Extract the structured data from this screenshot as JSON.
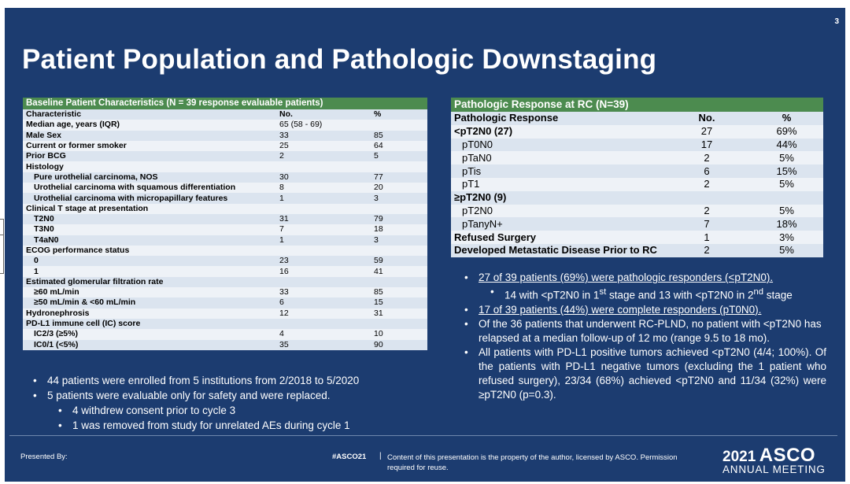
{
  "slide": {
    "number": "3",
    "title": "Patient Population and Pathologic Downstaging"
  },
  "baseline_table": {
    "header": "Baseline Patient Characteristics (N = 39 response evaluable patients)",
    "rows": [
      {
        "label": "Characteristic",
        "no": "No.",
        "pct": "%",
        "bold": true,
        "indent": false
      },
      {
        "label": "Median age, years (IQR)",
        "no": "65 (58 - 69)",
        "pct": "",
        "bold": true,
        "indent": false
      },
      {
        "label": "Male Sex",
        "no": "33",
        "pct": "85",
        "bold": true,
        "indent": false
      },
      {
        "label": "Current or former smoker",
        "no": "25",
        "pct": "64",
        "bold": true,
        "indent": false
      },
      {
        "label": "Prior BCG",
        "no": "2",
        "pct": "5",
        "bold": true,
        "indent": false
      },
      {
        "label": "Histology",
        "no": "",
        "pct": "",
        "bold": true,
        "indent": false
      },
      {
        "label": "Pure urothelial carcinoma, NOS",
        "no": "30",
        "pct": "77",
        "bold": true,
        "indent": true
      },
      {
        "label": "Urothelial carcinoma with squamous differentiation",
        "no": "8",
        "pct": "20",
        "bold": true,
        "indent": true
      },
      {
        "label": "Urothelial carcinoma with micropapillary features",
        "no": "1",
        "pct": "3",
        "bold": true,
        "indent": true
      },
      {
        "label": "Clinical T stage at presentation",
        "no": "",
        "pct": "",
        "bold": true,
        "indent": false
      },
      {
        "label": "T2N0",
        "no": "31",
        "pct": "79",
        "bold": true,
        "indent": true
      },
      {
        "label": "T3N0",
        "no": "7",
        "pct": "18",
        "bold": true,
        "indent": true
      },
      {
        "label": "T4aN0",
        "no": "1",
        "pct": "3",
        "bold": true,
        "indent": true
      },
      {
        "label": "ECOG performance status",
        "no": "",
        "pct": "",
        "bold": true,
        "indent": false
      },
      {
        "label": "0",
        "no": "23",
        "pct": "59",
        "bold": true,
        "indent": true
      },
      {
        "label": "1",
        "no": "16",
        "pct": "41",
        "bold": true,
        "indent": true
      },
      {
        "label": "Estimated glomerular filtration rate",
        "no": "",
        "pct": "",
        "bold": true,
        "indent": false
      },
      {
        "label": "≥60 mL/min",
        "no": "33",
        "pct": "85",
        "bold": true,
        "indent": true
      },
      {
        "label": "≥50 mL/min & <60 mL/min",
        "no": "6",
        "pct": "15",
        "bold": true,
        "indent": true
      },
      {
        "label": "Hydronephrosis",
        "no": "12",
        "pct": "31",
        "bold": true,
        "indent": false
      },
      {
        "label": "PD-L1 immune cell (IC) score",
        "no": "",
        "pct": "",
        "bold": true,
        "indent": false
      },
      {
        "label": "IC2/3 (≥5%)",
        "no": "4",
        "pct": "10",
        "bold": true,
        "indent": true
      },
      {
        "label": "IC0/1 (<5%)",
        "no": "35",
        "pct": "90",
        "bold": true,
        "indent": true
      }
    ]
  },
  "response_table": {
    "header": "Pathologic Response at  RC (N=39)",
    "rows": [
      {
        "label": "Pathologic Response",
        "no": "No.",
        "pct": "%",
        "bold": true,
        "indent": false
      },
      {
        "label": "<pT2N0 (27)",
        "no": "27",
        "pct": "69%",
        "bold": true,
        "indent": false
      },
      {
        "label": "pT0N0",
        "no": "17",
        "pct": "44%",
        "bold": false,
        "indent": true
      },
      {
        "label": "pTaN0",
        "no": "2",
        "pct": "5%",
        "bold": false,
        "indent": true
      },
      {
        "label": "pTis",
        "no": "6",
        "pct": "15%",
        "bold": false,
        "indent": true
      },
      {
        "label": "pT1",
        "no": "2",
        "pct": "5%",
        "bold": false,
        "indent": true
      },
      {
        "label": "≥pT2N0 (9)",
        "no": "",
        "pct": "",
        "bold": true,
        "indent": false
      },
      {
        "label": "pT2N0",
        "no": "2",
        "pct": "5%",
        "bold": false,
        "indent": true
      },
      {
        "label": "pTanyN+",
        "no": "7",
        "pct": "18%",
        "bold": false,
        "indent": true
      },
      {
        "label": "Refused Surgery",
        "no": "1",
        "pct": "3%",
        "bold": true,
        "indent": false
      },
      {
        "label": "Developed Metastatic Disease Prior to RC",
        "no": "2",
        "pct": "5%",
        "bold": true,
        "indent": false
      }
    ]
  },
  "left_bullets": {
    "b1": "44  patients were enrolled from 5 institutions from 2/2018 to 5/2020",
    "b2": "5 patients were evaluable only for safety and were replaced.",
    "b2a": "4 withdrew consent prior to cycle 3",
    "b2b": "1 was removed from study for unrelated AEs during cycle 1"
  },
  "right_bullets": {
    "b1": "27 of  39 patients (69%) were pathologic responders (<pT2N0).",
    "b1a_p1": "14 with <pT2N0  in 1",
    "b1a_sup1": "st",
    "b1a_p2": " stage and 13 with <pT2N0 in 2",
    "b1a_sup2": "nd",
    "b1a_p3": " stage",
    "b2": "17 of 39 patients (44%) were complete responders (pT0N0).",
    "b3": "Of the 36 patients that underwent RC-PLND, no patient with <pT2N0 has relapsed at a median follow-up of 12 mo (range 9.5 to 18 mo).",
    "b4": "All patients with PD-L1 positive tumors achieved <pT2N0 (4/4; 100%). Of the patients with PD-L1 negative tumors (excluding the 1 patient who refused surgery), 23/34 (68%) achieved <pT2N0 and 11/34 (32%) were ≥pT2N0 (p=0.3)."
  },
  "footer": {
    "presented_by": "Presented By:",
    "hashtag": "#ASCO21",
    "separator": "|",
    "copyright": "Content of this presentation is the property of the author, licensed by ASCO. Permission required for reuse.",
    "brand_year": "2021",
    "brand_name": "ASCO",
    "brand_sub": "ANNUAL MEETING"
  },
  "bullet_symbol": "•",
  "colors": {
    "background": "#1c3c70",
    "table_header": "#4c8b4f",
    "row_odd": "#dbe4ef",
    "row_even": "#eef2f7"
  }
}
